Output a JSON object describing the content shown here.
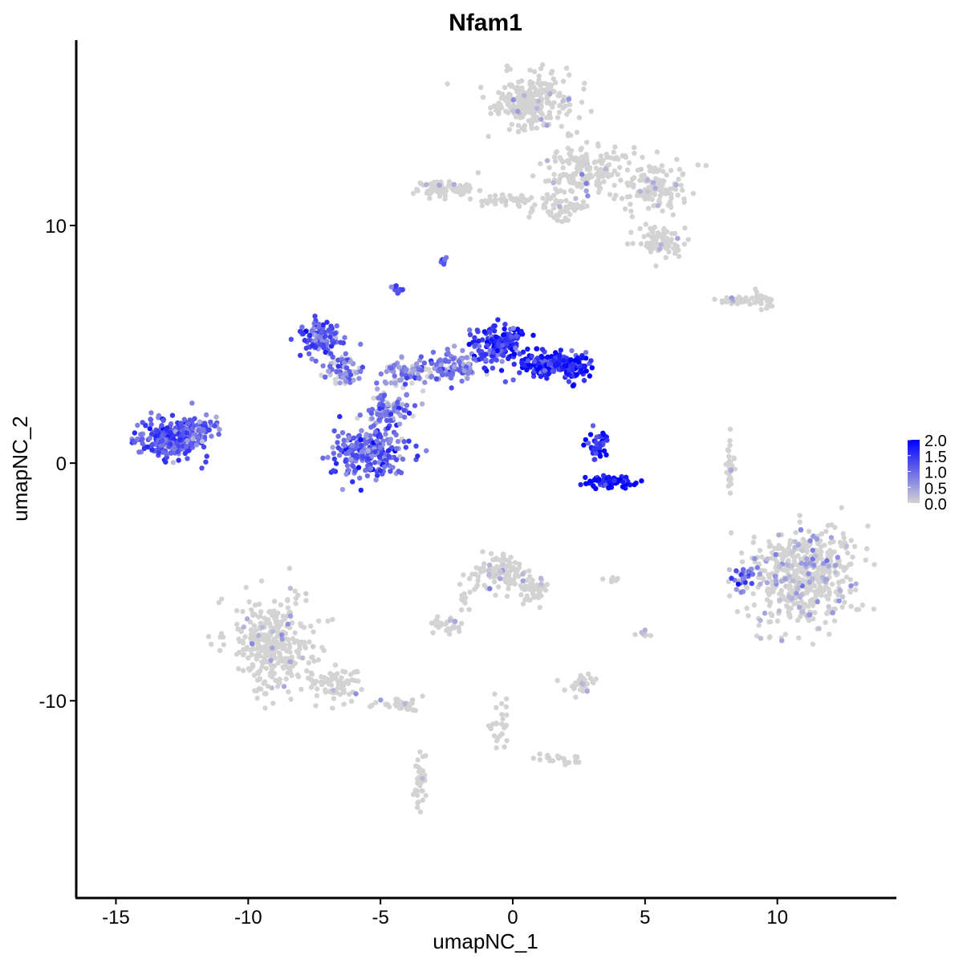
{
  "chart_data": {
    "type": "scatter",
    "title": "Nfam1",
    "xlabel": "umapNC_1",
    "ylabel": "umapNC_2",
    "xlim": [
      -16.5,
      14.5
    ],
    "ylim": [
      -18.3,
      17.8
    ],
    "xticks": [
      -15,
      -10,
      -5,
      0,
      5,
      10
    ],
    "yticks": [
      -10,
      0,
      10
    ],
    "xtick_labels": [
      "-15",
      "-10",
      "-5",
      "0",
      "5",
      "10"
    ],
    "ytick_labels": [
      "-10",
      "0",
      "10"
    ],
    "grid": false,
    "color_scale": {
      "low": "#d3d3d3",
      "high": "#0000ff",
      "min": 0.0,
      "max": 2.0,
      "breaks": [
        2.0,
        1.5,
        1.0,
        0.5,
        0.0
      ],
      "break_labels": [
        "2.0",
        "1.5",
        "1.0",
        "0.5",
        "0.0"
      ],
      "legend_position": "right"
    },
    "clusters": [
      {
        "center": [
          0.8,
          15.2
        ],
        "spread": [
          1.3,
          0.9
        ],
        "n": 260,
        "expr": 0.05
      },
      {
        "center": [
          2.8,
          12.3
        ],
        "spread": [
          1.5,
          0.9
        ],
        "n": 170,
        "expr": 0.05
      },
      {
        "center": [
          5.5,
          11.6
        ],
        "spread": [
          1.0,
          0.8
        ],
        "n": 130,
        "expr": 0.05
      },
      {
        "center": [
          1.8,
          10.7
        ],
        "spread": [
          0.8,
          0.5
        ],
        "n": 60,
        "expr": 0.05
      },
      {
        "center": [
          -2.4,
          11.5
        ],
        "spread": [
          1.1,
          0.35
        ],
        "n": 70,
        "expr": 0.05
      },
      {
        "center": [
          -0.2,
          11.1
        ],
        "spread": [
          1.0,
          0.25
        ],
        "n": 40,
        "expr": 0.05
      },
      {
        "center": [
          5.6,
          9.3
        ],
        "spread": [
          0.8,
          0.6
        ],
        "n": 80,
        "expr": 0.05
      },
      {
        "center": [
          8.6,
          6.9
        ],
        "spread": [
          0.9,
          0.2
        ],
        "n": 30,
        "expr": 0.05
      },
      {
        "center": [
          9.4,
          6.9
        ],
        "spread": [
          0.4,
          0.35
        ],
        "n": 20,
        "expr": 0.05
      },
      {
        "center": [
          -2.6,
          8.5
        ],
        "spread": [
          0.2,
          0.15
        ],
        "n": 8,
        "expr": 1.2
      },
      {
        "center": [
          -4.4,
          7.3
        ],
        "spread": [
          0.2,
          0.2
        ],
        "n": 10,
        "expr": 1.1
      },
      {
        "center": [
          -13.0,
          1.0
        ],
        "spread": [
          1.0,
          0.7
        ],
        "n": 240,
        "expr": 1.2
      },
      {
        "center": [
          -11.8,
          1.4
        ],
        "spread": [
          0.6,
          0.5
        ],
        "n": 60,
        "expr": 1.0
      },
      {
        "center": [
          -7.3,
          5.3
        ],
        "spread": [
          0.6,
          0.6
        ],
        "n": 110,
        "expr": 1.1
      },
      {
        "center": [
          -6.4,
          4.0
        ],
        "spread": [
          0.6,
          0.6
        ],
        "n": 70,
        "expr": 0.8
      },
      {
        "center": [
          -5.5,
          0.4
        ],
        "spread": [
          1.2,
          0.8
        ],
        "n": 230,
        "expr": 1.1
      },
      {
        "center": [
          -4.8,
          2.2
        ],
        "spread": [
          0.8,
          0.8
        ],
        "n": 90,
        "expr": 0.9
      },
      {
        "center": [
          -3.8,
          3.8
        ],
        "spread": [
          0.8,
          0.5
        ],
        "n": 80,
        "expr": 0.7
      },
      {
        "center": [
          -2.3,
          4.0
        ],
        "spread": [
          0.9,
          0.6
        ],
        "n": 90,
        "expr": 0.9
      },
      {
        "center": [
          -0.6,
          5.0
        ],
        "spread": [
          0.8,
          0.7
        ],
        "n": 160,
        "expr": 1.5
      },
      {
        "center": [
          1.2,
          4.2
        ],
        "spread": [
          0.8,
          0.5
        ],
        "n": 120,
        "expr": 1.5
      },
      {
        "center": [
          2.3,
          4.0
        ],
        "spread": [
          0.5,
          0.5
        ],
        "n": 80,
        "expr": 1.7
      },
      {
        "center": [
          3.6,
          -0.8
        ],
        "spread": [
          0.8,
          0.2
        ],
        "n": 90,
        "expr": 1.9
      },
      {
        "center": [
          3.2,
          0.7
        ],
        "spread": [
          0.4,
          0.5
        ],
        "n": 40,
        "expr": 1.6
      },
      {
        "center": [
          11.0,
          -4.8
        ],
        "spread": [
          1.6,
          1.6
        ],
        "n": 520,
        "expr": 0.25
      },
      {
        "center": [
          8.7,
          -4.8
        ],
        "spread": [
          0.3,
          0.5
        ],
        "n": 25,
        "expr": 1.0
      },
      {
        "center": [
          8.2,
          -0.2
        ],
        "spread": [
          0.15,
          1.0
        ],
        "n": 30,
        "expr": 0.05
      },
      {
        "center": [
          -9.0,
          -7.6
        ],
        "spread": [
          1.3,
          1.6
        ],
        "n": 330,
        "expr": 0.05
      },
      {
        "center": [
          -6.7,
          -9.3
        ],
        "spread": [
          1.0,
          0.6
        ],
        "n": 70,
        "expr": 0.05
      },
      {
        "center": [
          -4.2,
          -10.2
        ],
        "spread": [
          0.7,
          0.3
        ],
        "n": 40,
        "expr": 0.05
      },
      {
        "center": [
          -3.5,
          -13.5
        ],
        "spread": [
          0.2,
          1.0
        ],
        "n": 40,
        "expr": 0.05
      },
      {
        "center": [
          -0.5,
          -4.6
        ],
        "spread": [
          0.8,
          0.6
        ],
        "n": 110,
        "expr": 0.1
      },
      {
        "center": [
          0.8,
          -5.4
        ],
        "spread": [
          0.5,
          0.5
        ],
        "n": 40,
        "expr": 0.1
      },
      {
        "center": [
          -2.5,
          -6.8
        ],
        "spread": [
          0.5,
          0.3
        ],
        "n": 25,
        "expr": 0.2
      },
      {
        "center": [
          -1.8,
          -5.8
        ],
        "spread": [
          0.2,
          0.8
        ],
        "n": 15,
        "expr": 0.05
      },
      {
        "center": [
          2.6,
          -9.3
        ],
        "spread": [
          0.5,
          0.3
        ],
        "n": 30,
        "expr": 0.2
      },
      {
        "center": [
          -0.5,
          -11.0
        ],
        "spread": [
          0.3,
          1.0
        ],
        "n": 25,
        "expr": 0.05
      },
      {
        "center": [
          1.8,
          -12.5
        ],
        "spread": [
          0.8,
          0.2
        ],
        "n": 20,
        "expr": 0.05
      },
      {
        "center": [
          5.0,
          -7.2
        ],
        "spread": [
          0.2,
          0.2
        ],
        "n": 8,
        "expr": 0.3
      },
      {
        "center": [
          3.6,
          -4.9
        ],
        "spread": [
          0.4,
          0.1
        ],
        "n": 8,
        "expr": 0.05
      }
    ]
  }
}
